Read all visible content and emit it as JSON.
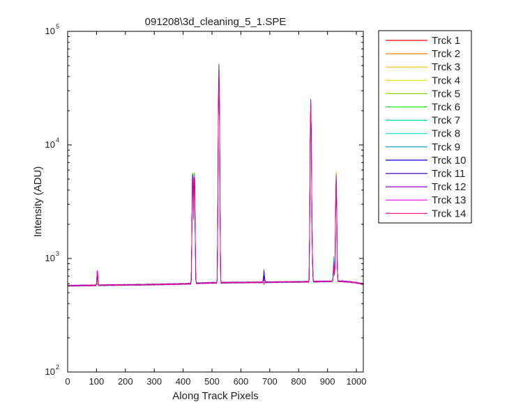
{
  "chart_data": {
    "type": "line",
    "title": "091208\\3d_cleaning_5_1.SPE",
    "xlabel": "Along Track Pixels",
    "ylabel": "Intensity (ADU)",
    "xlim": [
      0,
      1024
    ],
    "ylim": [
      100,
      100000
    ],
    "yscale": "log",
    "grid": false,
    "legend": "outside-right",
    "x_ticks": [
      0,
      100,
      200,
      300,
      400,
      500,
      600,
      700,
      800,
      900,
      1000
    ],
    "y_ticks": [
      {
        "value": 100,
        "base": "10",
        "exp": "2"
      },
      {
        "value": 1000,
        "base": "10",
        "exp": "3"
      },
      {
        "value": 10000,
        "base": "10",
        "exp": "4"
      },
      {
        "value": 100000,
        "base": "10",
        "exp": "5"
      }
    ],
    "baseline": {
      "x": [
        0,
        50,
        100,
        150,
        200,
        250,
        300,
        350,
        400,
        430,
        450,
        500,
        550,
        600,
        650,
        700,
        750,
        800,
        840,
        860,
        900,
        950,
        1000,
        1024
      ],
      "y": [
        575,
        578,
        580,
        583,
        585,
        587,
        590,
        593,
        597,
        600,
        605,
        610,
        612,
        614,
        616,
        618,
        620,
        622,
        624,
        626,
        628,
        630,
        612,
        595
      ]
    },
    "peaks": [
      {
        "x": 103,
        "height": 720
      },
      {
        "x": 433,
        "height": 6100
      },
      {
        "x": 439,
        "height": 5800
      },
      {
        "x": 524,
        "height": 45000
      },
      {
        "x": 680,
        "height": 680
      },
      {
        "x": 842,
        "height": 22000
      },
      {
        "x": 846,
        "height": 1400
      },
      {
        "x": 922,
        "height": 950
      },
      {
        "x": 930,
        "height": 5300
      }
    ],
    "series": [
      {
        "name": "Trck 1",
        "color": "#ff0000"
      },
      {
        "name": "Trck 2",
        "color": "#ff7f00"
      },
      {
        "name": "Trck 3",
        "color": "#ffbf00"
      },
      {
        "name": "Trck 4",
        "color": "#e5e600"
      },
      {
        "name": "Trck 5",
        "color": "#80e600"
      },
      {
        "name": "Trck 6",
        "color": "#1ee61e"
      },
      {
        "name": "Trck 7",
        "color": "#00e68a"
      },
      {
        "name": "Trck 8",
        "color": "#00e6c8"
      },
      {
        "name": "Trck 9",
        "color": "#0099cc"
      },
      {
        "name": "Trck 10",
        "color": "#0000e6"
      },
      {
        "name": "Trck 11",
        "color": "#4000cc"
      },
      {
        "name": "Trck 12",
        "color": "#9900e6"
      },
      {
        "name": "Trck 13",
        "color": "#e600e6"
      },
      {
        "name": "Trck 14",
        "color": "#ff0080"
      }
    ]
  }
}
